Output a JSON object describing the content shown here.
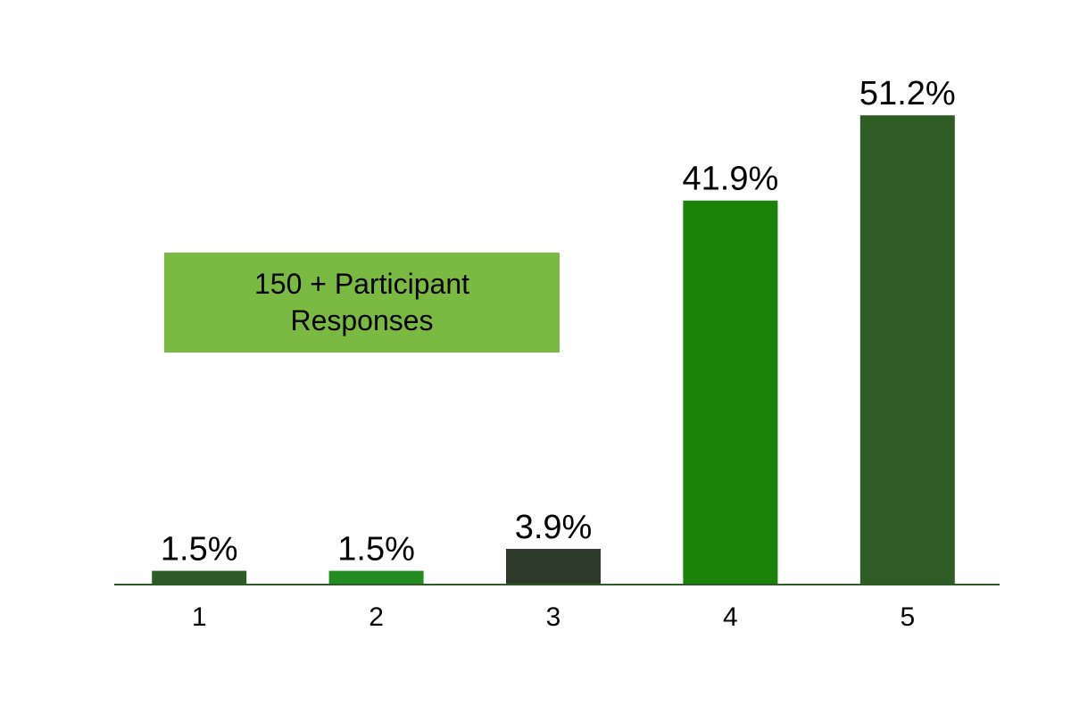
{
  "chart_data": {
    "type": "bar",
    "categories": [
      "1",
      "2",
      "3",
      "4",
      "5"
    ],
    "values": [
      1.5,
      1.5,
      3.9,
      41.9,
      51.2
    ],
    "value_labels": [
      "1.5%",
      "1.5%",
      "3.9%",
      "41.9%",
      "51.2%"
    ],
    "bar_colors": [
      "#2d5a27",
      "#228b22",
      "#2e3b2b",
      "#1a8208",
      "#2e5c24"
    ],
    "ylim": [
      0,
      52
    ],
    "grid": false,
    "legend": "none",
    "annotation": {
      "lines": [
        "150 + Participant",
        "Responses"
      ],
      "background": "#7aba42"
    }
  }
}
